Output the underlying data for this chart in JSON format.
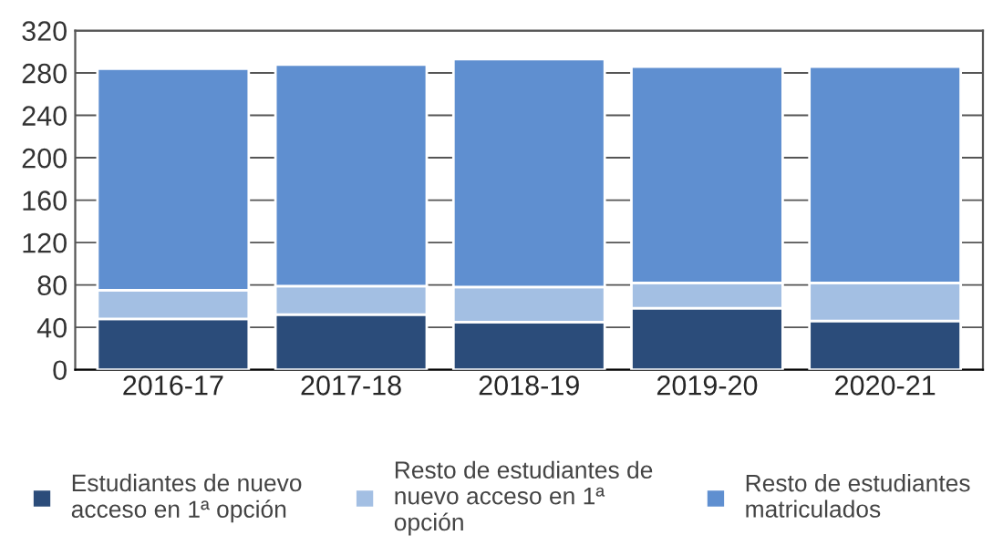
{
  "chart_data": {
    "type": "bar",
    "stacked": true,
    "categories": [
      "2016-17",
      "2017-18",
      "2018-19",
      "2019-20",
      "2020-21"
    ],
    "series": [
      {
        "name": "Estudiantes de nuevo acceso en 1ª opción",
        "color": "#2b4c7a",
        "values": [
          48,
          52,
          45,
          58,
          46
        ]
      },
      {
        "name": "Resto de estudiantes de nuevo acceso en 1ª opción",
        "color": "#a3bfe3",
        "values": [
          27,
          27,
          33,
          24,
          36
        ]
      },
      {
        "name": "Resto de estudiantes matriculados",
        "color": "#5f8fd0",
        "values": [
          209,
          209,
          215,
          204,
          204
        ]
      }
    ],
    "ylim": [
      0,
      320
    ],
    "yticks": [
      0,
      40,
      80,
      120,
      160,
      200,
      240,
      280,
      320
    ],
    "grid": "y",
    "legend": "bottom"
  }
}
